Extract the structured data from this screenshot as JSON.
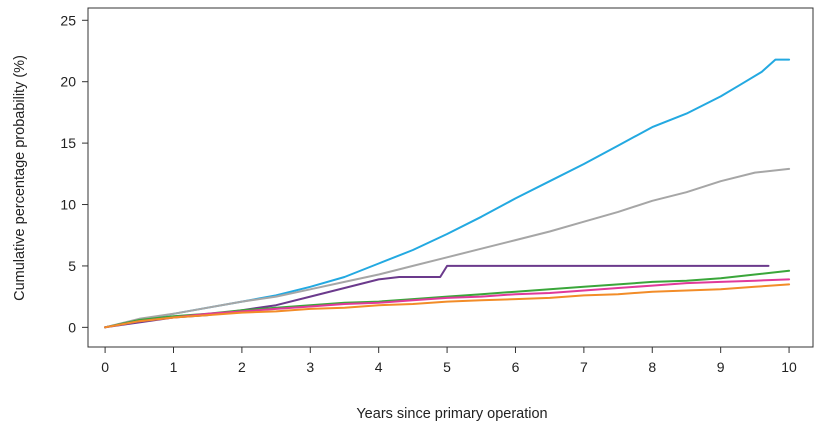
{
  "chart_data": {
    "type": "line",
    "title": "",
    "xlabel": "Years since primary operation",
    "ylabel": "Cumulative percentage probability (%)",
    "xlim": [
      -0.25,
      10.35
    ],
    "ylim": [
      -1.6,
      26.0
    ],
    "xticks": [
      0,
      1,
      2,
      3,
      4,
      5,
      6,
      7,
      8,
      9,
      10
    ],
    "yticks": [
      0,
      5,
      10,
      15,
      20,
      25
    ],
    "grid": false,
    "legend": "none",
    "series": [
      {
        "color": "#23a9e1",
        "x": [
          0,
          0.5,
          1,
          1.5,
          2,
          2.5,
          3,
          3.5,
          4,
          4.5,
          5,
          5.5,
          6,
          6.5,
          7,
          7.5,
          8,
          8.5,
          9,
          9.3,
          9.6,
          9.8,
          10
        ],
        "y": [
          0,
          0.6,
          1.1,
          1.6,
          2.1,
          2.6,
          3.3,
          4.1,
          5.2,
          6.3,
          7.6,
          9.0,
          10.5,
          11.9,
          13.3,
          14.8,
          16.3,
          17.4,
          18.8,
          19.8,
          20.8,
          21.8,
          21.8
        ]
      },
      {
        "color": "#a6a6a6",
        "x": [
          0,
          0.5,
          1,
          1.5,
          2,
          2.5,
          3,
          3.5,
          4,
          4.5,
          5,
          5.5,
          6,
          6.5,
          7,
          7.5,
          8,
          8.5,
          9,
          9.5,
          10
        ],
        "y": [
          0,
          0.7,
          1.1,
          1.6,
          2.1,
          2.5,
          3.1,
          3.7,
          4.3,
          5.0,
          5.7,
          6.4,
          7.1,
          7.8,
          8.6,
          9.4,
          10.3,
          11.0,
          11.9,
          12.6,
          12.9
        ]
      },
      {
        "color": "#6b3a8c",
        "x": [
          0,
          0.5,
          1,
          1.5,
          2,
          2.5,
          3,
          3.5,
          4,
          4.3,
          4.5,
          4.9,
          5.0,
          6,
          7,
          8,
          9,
          9.7
        ],
        "y": [
          0,
          0.4,
          0.8,
          1.0,
          1.4,
          1.8,
          2.5,
          3.2,
          3.9,
          4.1,
          4.1,
          4.1,
          5.0,
          5.0,
          5.0,
          5.0,
          5.0,
          5.0
        ]
      },
      {
        "color": "#3aa63a",
        "x": [
          0,
          0.5,
          1,
          1.5,
          2,
          2.5,
          3,
          3.5,
          4,
          4.5,
          5,
          5.5,
          6,
          6.5,
          7,
          7.5,
          8,
          8.5,
          9,
          9.5,
          10
        ],
        "y": [
          0,
          0.6,
          0.9,
          1.1,
          1.4,
          1.6,
          1.8,
          2.0,
          2.1,
          2.3,
          2.5,
          2.7,
          2.9,
          3.1,
          3.3,
          3.5,
          3.7,
          3.8,
          4.0,
          4.3,
          4.6
        ]
      },
      {
        "color": "#e0399a",
        "x": [
          0,
          0.5,
          1,
          1.5,
          2,
          2.5,
          3,
          3.5,
          4,
          4.5,
          5,
          5.5,
          6,
          6.5,
          7,
          7.5,
          8,
          8.5,
          9,
          9.5,
          10
        ],
        "y": [
          0,
          0.5,
          0.8,
          1.1,
          1.3,
          1.5,
          1.7,
          1.9,
          2.0,
          2.2,
          2.4,
          2.5,
          2.7,
          2.8,
          3.0,
          3.2,
          3.4,
          3.6,
          3.7,
          3.8,
          3.9
        ]
      },
      {
        "color": "#f28c28",
        "x": [
          0,
          0.5,
          1,
          1.5,
          2,
          2.5,
          3,
          3.5,
          4,
          4.5,
          5,
          5.5,
          6,
          6.5,
          7,
          7.5,
          8,
          8.5,
          9,
          9.5,
          10
        ],
        "y": [
          0,
          0.5,
          0.8,
          1.0,
          1.2,
          1.3,
          1.5,
          1.6,
          1.8,
          1.9,
          2.1,
          2.2,
          2.3,
          2.4,
          2.6,
          2.7,
          2.9,
          3.0,
          3.1,
          3.3,
          3.5
        ]
      }
    ]
  }
}
